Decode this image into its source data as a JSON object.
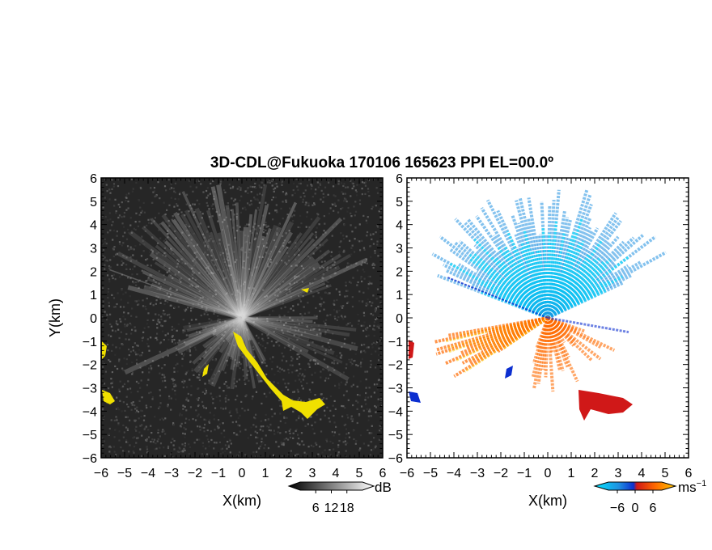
{
  "chart_data": {
    "title": "3D-CDL@Fukuoka 170106 165623 PPI EL=00.0º",
    "panels": [
      {
        "type": "heatmap",
        "name": "reflectivity",
        "xlabel": "X(km)",
        "ylabel": "Y(km)",
        "xlim": [
          -6,
          6
        ],
        "ylim": [
          -6,
          6
        ],
        "xticks": [
          -6,
          -5,
          -4,
          -3,
          -2,
          -1,
          0,
          1,
          2,
          3,
          4,
          5,
          6
        ],
        "yticks": [
          -6,
          -5,
          -4,
          -3,
          -2,
          -1,
          0,
          1,
          2,
          3,
          4,
          5,
          6
        ],
        "background_color": "#262626",
        "highlight_color": "#f0e000",
        "colorbar": {
          "label": "dB",
          "ticks": [
            6,
            12,
            18
          ],
          "range": [
            0,
            24
          ]
        }
      },
      {
        "type": "heatmap",
        "name": "doppler-velocity",
        "xlabel": "X(km)",
        "xlim": [
          -6,
          6
        ],
        "ylim": [
          -6,
          6
        ],
        "xticks": [
          -6,
          -5,
          -4,
          -3,
          -2,
          -1,
          0,
          1,
          2,
          3,
          4,
          5,
          6
        ],
        "yticks": [
          -6,
          -5,
          -4,
          -3,
          -2,
          -1,
          0,
          1,
          2,
          3,
          4,
          5,
          6
        ],
        "colorbar": {
          "label": "ms",
          "label_sup": "−1",
          "ticks": [
            -6,
            0,
            6
          ],
          "range": [
            -9,
            9
          ],
          "colors": [
            "#00e5ff",
            "#1f8fe0",
            "#0c2fd0",
            "#d01818",
            "#ff6a00",
            "#ffc800"
          ]
        }
      }
    ]
  }
}
